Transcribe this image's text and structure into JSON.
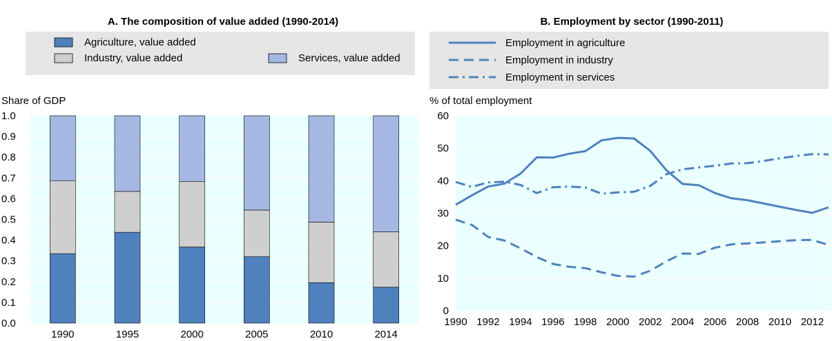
{
  "colors": {
    "legend_bg": "#e6e6e6",
    "plot_bg": "#eaffff",
    "agriculture": "#4f81bd",
    "industry": "#cfcfcf",
    "services": "#a5b8e3",
    "line": "#4f81bd",
    "grid": "#ffffff",
    "bar_outline": "#000000"
  },
  "chart_data": [
    {
      "type": "bar",
      "stacked": true,
      "title": "A. The composition of value added (1990-2014)",
      "ylabel": "Share of GDP",
      "xlabel": "",
      "ylim": [
        0,
        1.0
      ],
      "yticks": [
        "0.0",
        "0.1",
        "0.2",
        "0.3",
        "0.4",
        "0.5",
        "0.6",
        "0.7",
        "0.8",
        "0.9",
        "1.0"
      ],
      "categories": [
        "1990",
        "1995",
        "2000",
        "2005",
        "2010",
        "2014"
      ],
      "series": [
        {
          "name": "Agriculture, value added",
          "values": [
            0.335,
            0.438,
            0.367,
            0.32,
            0.195,
            0.173
          ]
        },
        {
          "name": "Industry, value added",
          "values": [
            0.352,
            0.197,
            0.315,
            0.225,
            0.292,
            0.267
          ]
        },
        {
          "name": "Services, value added",
          "values": [
            0.313,
            0.365,
            0.318,
            0.455,
            0.513,
            0.56
          ]
        }
      ],
      "legend": "top",
      "grid": true
    },
    {
      "type": "line",
      "title": "B. Employment by sector (1990-2011)",
      "ylabel": "% of total employment",
      "xlabel": "",
      "ylim": [
        0,
        60
      ],
      "yticks": [
        "0",
        "10",
        "20",
        "30",
        "40",
        "50",
        "60"
      ],
      "xlim": [
        1990,
        2013
      ],
      "xticks": [
        "1990",
        "1992",
        "1994",
        "1996",
        "1998",
        "2000",
        "2002",
        "2004",
        "2006",
        "2008",
        "2010",
        "2012"
      ],
      "x": [
        1990,
        1991,
        1992,
        1993,
        1994,
        1995,
        1996,
        1997,
        1998,
        1999,
        2000,
        2001,
        2002,
        2003,
        2004,
        2005,
        2006,
        2007,
        2008,
        2009,
        2010,
        2011,
        2012,
        2013
      ],
      "series": [
        {
          "name": "Employment in agriculture",
          "style": "solid",
          "values": [
            32.6,
            35.5,
            38.2,
            39.1,
            42.2,
            47.2,
            47.1,
            48.3,
            49.1,
            52.4,
            53.2,
            53.0,
            49.2,
            43.2,
            39.0,
            38.6,
            36.2,
            34.6,
            34.0,
            33.0,
            32.0,
            31.0,
            30.1,
            31.8
          ]
        },
        {
          "name": "Employment in industry",
          "style": "dashed",
          "values": [
            28.0,
            26.4,
            22.7,
            21.6,
            19.2,
            16.5,
            14.4,
            13.5,
            13.1,
            11.8,
            10.7,
            10.5,
            12.3,
            15.2,
            17.6,
            17.5,
            19.4,
            20.4,
            20.7,
            21.0,
            21.4,
            21.7,
            21.8,
            20.2
          ]
        },
        {
          "name": "Employment in services",
          "style": "dashdot",
          "values": [
            39.6,
            38.1,
            39.5,
            39.7,
            38.7,
            36.2,
            38.0,
            38.2,
            37.9,
            36.0,
            36.4,
            36.6,
            38.4,
            42.0,
            43.5,
            44.1,
            44.6,
            45.3,
            45.4,
            46.1,
            46.9,
            47.6,
            48.2,
            48.1
          ]
        }
      ],
      "legend": "top-left",
      "grid": true
    }
  ]
}
